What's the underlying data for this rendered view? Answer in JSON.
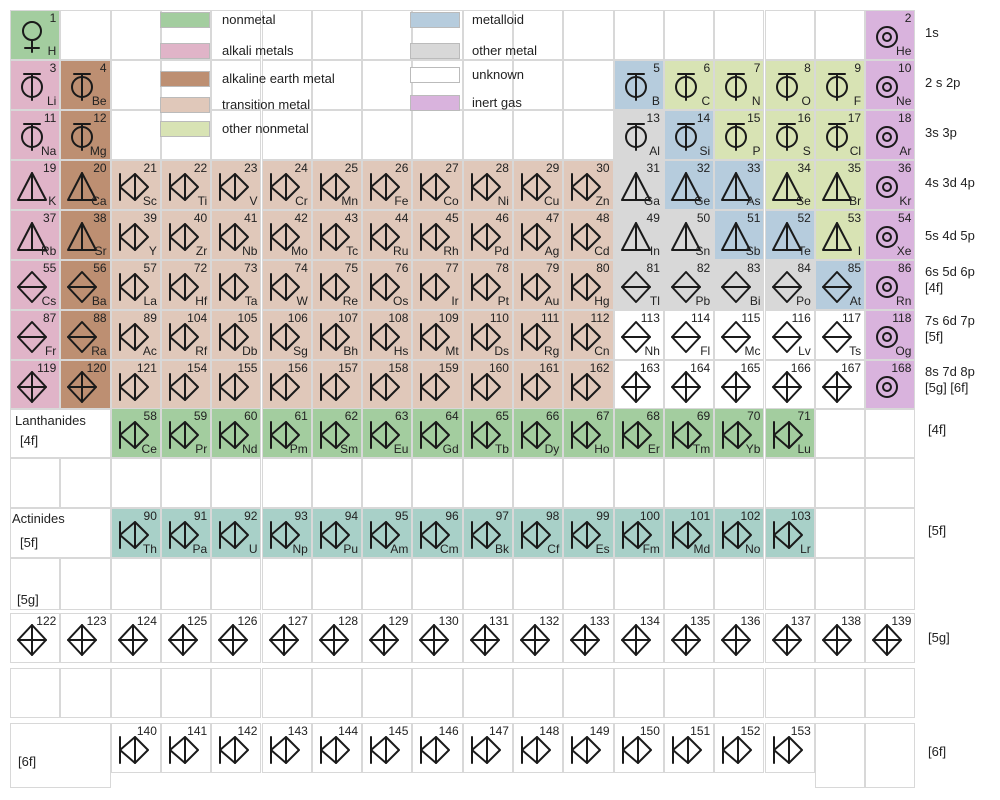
{
  "colors": {
    "nonmetal": "#a3cd9f",
    "alkali": "#e0b4c8",
    "alkaline": "#bd8f72",
    "transition": "#e0c8ba",
    "other_nonmetal": "#d8e3b4",
    "metalloid": "#b6ccdd",
    "other_metal": "#d8d8d8",
    "unknown": "#ffffff",
    "inert": "#d9b3dd",
    "lanthanide": "#a3cd9f",
    "actinide": "#a8d0c8"
  },
  "legend": [
    {
      "key": "nonmetal",
      "label": "nonmetal"
    },
    {
      "key": "alkali",
      "label": "alkali metals"
    },
    {
      "key": "alkaline",
      "label": "alkaline earth metal"
    },
    {
      "key": "transition",
      "label": "transition metal"
    },
    {
      "key": "other_nonmetal",
      "label": "other nonmetal"
    },
    {
      "key": "metalloid",
      "label": "metalloid"
    },
    {
      "key": "other_metal",
      "label": "other metal"
    },
    {
      "key": "unknown",
      "label": "unknown"
    },
    {
      "key": "inert",
      "label": "inert gas"
    }
  ],
  "shell_labels": [
    [
      "1s"
    ],
    [
      "2 s 2p"
    ],
    [
      "3s 3p"
    ],
    [
      "4s 3d 4p"
    ],
    [
      "5s 4d 5p"
    ],
    [
      "6s 5d 6p",
      "[4f]"
    ],
    [
      "7s 6d 7p",
      "[5f]"
    ],
    [
      "8s 7d 8p",
      "[5g] [6f]"
    ],
    [
      "[4f]"
    ],
    [
      "[5f]"
    ],
    [
      "[5g]"
    ],
    [
      "[6f]"
    ]
  ],
  "block_labels": {
    "lanthanides": [
      "Lanthanides",
      "[4f]"
    ],
    "actinides": [
      "Actinides",
      "[5f]"
    ],
    "g5": "[5g]",
    "f6": "[6f]"
  },
  "rows": [
    {
      "n": "1",
      "elements": [
        {
          "z": "1",
          "s": "H",
          "c": "nonmetal",
          "g": "circle-stem"
        },
        {
          "z": "2",
          "s": "He",
          "c": "inert",
          "g": "circle-target"
        }
      ]
    },
    {
      "n": "2",
      "elements": [
        {
          "z": "3",
          "s": "Li",
          "c": "alkali"
        },
        {
          "z": "4",
          "s": "Be",
          "c": "alkaline"
        },
        {
          "z": "5",
          "s": "B",
          "c": "metalloid"
        },
        {
          "z": "6",
          "s": "C",
          "c": "other_nonmetal"
        },
        {
          "z": "7",
          "s": "N",
          "c": "other_nonmetal"
        },
        {
          "z": "8",
          "s": "O",
          "c": "other_nonmetal"
        },
        {
          "z": "9",
          "s": "F",
          "c": "other_nonmetal"
        },
        {
          "z": "10",
          "s": "Ne",
          "c": "inert"
        }
      ]
    },
    {
      "n": "3",
      "elements": [
        {
          "z": "11",
          "s": "Na",
          "c": "alkali"
        },
        {
          "z": "12",
          "s": "Mg",
          "c": "alkaline"
        },
        {
          "z": "13",
          "s": "Al",
          "c": "other_metal"
        },
        {
          "z": "14",
          "s": "Si",
          "c": "metalloid"
        },
        {
          "z": "15",
          "s": "P",
          "c": "other_nonmetal"
        },
        {
          "z": "16",
          "s": "S",
          "c": "other_nonmetal"
        },
        {
          "z": "17",
          "s": "Cl",
          "c": "other_nonmetal"
        },
        {
          "z": "18",
          "s": "Ar",
          "c": "inert"
        }
      ]
    },
    {
      "n": "4",
      "elements": [
        {
          "z": "19",
          "s": "K",
          "c": "alkali"
        },
        {
          "z": "20",
          "s": "Ca",
          "c": "alkaline"
        },
        {
          "z": "21",
          "s": "Sc",
          "c": "transition"
        },
        {
          "z": "22",
          "s": "Ti",
          "c": "transition"
        },
        {
          "z": "23",
          "s": "V",
          "c": "transition"
        },
        {
          "z": "24",
          "s": "Cr",
          "c": "transition"
        },
        {
          "z": "25",
          "s": "Mn",
          "c": "transition"
        },
        {
          "z": "26",
          "s": "Fe",
          "c": "transition"
        },
        {
          "z": "27",
          "s": "Co",
          "c": "transition"
        },
        {
          "z": "28",
          "s": "Ni",
          "c": "transition"
        },
        {
          "z": "29",
          "s": "Cu",
          "c": "transition"
        },
        {
          "z": "30",
          "s": "Zn",
          "c": "transition"
        },
        {
          "z": "31",
          "s": "Ga",
          "c": "other_metal"
        },
        {
          "z": "32",
          "s": "Ge",
          "c": "metalloid"
        },
        {
          "z": "33",
          "s": "As",
          "c": "metalloid"
        },
        {
          "z": "34",
          "s": "Se",
          "c": "other_nonmetal"
        },
        {
          "z": "35",
          "s": "Br",
          "c": "other_nonmetal"
        },
        {
          "z": "36",
          "s": "Kr",
          "c": "inert"
        }
      ]
    },
    {
      "n": "5",
      "elements": [
        {
          "z": "37",
          "s": "Rb",
          "c": "alkali"
        },
        {
          "z": "38",
          "s": "Sr",
          "c": "alkaline"
        },
        {
          "z": "39",
          "s": "Y",
          "c": "transition"
        },
        {
          "z": "40",
          "s": "Zr",
          "c": "transition"
        },
        {
          "z": "41",
          "s": "Nb",
          "c": "transition"
        },
        {
          "z": "42",
          "s": "Mo",
          "c": "transition"
        },
        {
          "z": "43",
          "s": "Tc",
          "c": "transition"
        },
        {
          "z": "44",
          "s": "Ru",
          "c": "transition"
        },
        {
          "z": "45",
          "s": "Rh",
          "c": "transition"
        },
        {
          "z": "46",
          "s": "Pd",
          "c": "transition"
        },
        {
          "z": "47",
          "s": "Ag",
          "c": "transition"
        },
        {
          "z": "48",
          "s": "Cd",
          "c": "transition"
        },
        {
          "z": "49",
          "s": "In",
          "c": "other_metal"
        },
        {
          "z": "50",
          "s": "Sn",
          "c": "other_metal"
        },
        {
          "z": "51",
          "s": "Sb",
          "c": "metalloid"
        },
        {
          "z": "52",
          "s": "Te",
          "c": "metalloid"
        },
        {
          "z": "53",
          "s": "I",
          "c": "other_nonmetal"
        },
        {
          "z": "54",
          "s": "Xe",
          "c": "inert"
        }
      ]
    },
    {
      "n": "6",
      "elements": [
        {
          "z": "55",
          "s": "Cs",
          "c": "alkali"
        },
        {
          "z": "56",
          "s": "Ba",
          "c": "alkaline"
        },
        {
          "z": "57",
          "s": "La",
          "c": "transition"
        },
        {
          "z": "72",
          "s": "Hf",
          "c": "transition"
        },
        {
          "z": "73",
          "s": "Ta",
          "c": "transition"
        },
        {
          "z": "74",
          "s": "W",
          "c": "transition"
        },
        {
          "z": "75",
          "s": "Re",
          "c": "transition"
        },
        {
          "z": "76",
          "s": "Os",
          "c": "transition"
        },
        {
          "z": "77",
          "s": "Ir",
          "c": "transition"
        },
        {
          "z": "78",
          "s": "Pt",
          "c": "transition"
        },
        {
          "z": "79",
          "s": "Au",
          "c": "transition"
        },
        {
          "z": "80",
          "s": "Hg",
          "c": "transition"
        },
        {
          "z": "81",
          "s": "Tl",
          "c": "other_metal"
        },
        {
          "z": "82",
          "s": "Pb",
          "c": "other_metal"
        },
        {
          "z": "83",
          "s": "Bi",
          "c": "other_metal"
        },
        {
          "z": "84",
          "s": "Po",
          "c": "other_metal"
        },
        {
          "z": "85",
          "s": "At",
          "c": "metalloid"
        },
        {
          "z": "86",
          "s": "Rn",
          "c": "inert"
        }
      ]
    },
    {
      "n": "7",
      "elements": [
        {
          "z": "87",
          "s": "Fr",
          "c": "alkali"
        },
        {
          "z": "88",
          "s": "Ra",
          "c": "alkaline"
        },
        {
          "z": "89",
          "s": "Ac",
          "c": "transition"
        },
        {
          "z": "104",
          "s": "Rf",
          "c": "transition"
        },
        {
          "z": "105",
          "s": "Db",
          "c": "transition"
        },
        {
          "z": "106",
          "s": "Sg",
          "c": "transition"
        },
        {
          "z": "107",
          "s": "Bh",
          "c": "transition"
        },
        {
          "z": "108",
          "s": "Hs",
          "c": "transition"
        },
        {
          "z": "109",
          "s": "Mt",
          "c": "transition"
        },
        {
          "z": "110",
          "s": "Ds",
          "c": "transition"
        },
        {
          "z": "111",
          "s": "Rg",
          "c": "transition"
        },
        {
          "z": "112",
          "s": "Cn",
          "c": "transition"
        },
        {
          "z": "113",
          "s": "Nh",
          "c": "unknown"
        },
        {
          "z": "114",
          "s": "Fl",
          "c": "unknown"
        },
        {
          "z": "115",
          "s": "Mc",
          "c": "unknown"
        },
        {
          "z": "116",
          "s": "Lv",
          "c": "unknown"
        },
        {
          "z": "117",
          "s": "Ts",
          "c": "unknown"
        },
        {
          "z": "118",
          "s": "Og",
          "c": "inert"
        }
      ]
    },
    {
      "n": "8",
      "elements": [
        {
          "z": "119",
          "s": "",
          "c": "alkali"
        },
        {
          "z": "120",
          "s": "",
          "c": "alkaline"
        },
        {
          "z": "121",
          "s": "",
          "c": "transition"
        },
        {
          "z": "154",
          "s": "",
          "c": "transition"
        },
        {
          "z": "155",
          "s": "",
          "c": "transition"
        },
        {
          "z": "156",
          "s": "",
          "c": "transition"
        },
        {
          "z": "157",
          "s": "",
          "c": "transition"
        },
        {
          "z": "158",
          "s": "",
          "c": "transition"
        },
        {
          "z": "159",
          "s": "",
          "c": "transition"
        },
        {
          "z": "160",
          "s": "",
          "c": "transition"
        },
        {
          "z": "161",
          "s": "",
          "c": "transition"
        },
        {
          "z": "162",
          "s": "",
          "c": "transition"
        },
        {
          "z": "163",
          "s": "",
          "c": "unknown"
        },
        {
          "z": "164",
          "s": "",
          "c": "unknown"
        },
        {
          "z": "165",
          "s": "",
          "c": "unknown"
        },
        {
          "z": "166",
          "s": "",
          "c": "unknown"
        },
        {
          "z": "167",
          "s": "",
          "c": "unknown"
        },
        {
          "z": "168",
          "s": "",
          "c": "inert"
        }
      ]
    }
  ],
  "lanthanides": [
    {
      "z": "58",
      "s": "Ce"
    },
    {
      "z": "59",
      "s": "Pr"
    },
    {
      "z": "60",
      "s": "Nd"
    },
    {
      "z": "61",
      "s": "Pm"
    },
    {
      "z": "62",
      "s": "Sm"
    },
    {
      "z": "63",
      "s": "Eu"
    },
    {
      "z": "64",
      "s": "Gd"
    },
    {
      "z": "65",
      "s": "Tb"
    },
    {
      "z": "66",
      "s": "Dy"
    },
    {
      "z": "67",
      "s": "Ho"
    },
    {
      "z": "68",
      "s": "Er"
    },
    {
      "z": "69",
      "s": "Tm"
    },
    {
      "z": "70",
      "s": "Yb"
    },
    {
      "z": "71",
      "s": "Lu"
    }
  ],
  "actinides": [
    {
      "z": "90",
      "s": "Th"
    },
    {
      "z": "91",
      "s": "Pa"
    },
    {
      "z": "92",
      "s": "U"
    },
    {
      "z": "93",
      "s": "Np"
    },
    {
      "z": "94",
      "s": "Pu"
    },
    {
      "z": "95",
      "s": "Am"
    },
    {
      "z": "96",
      "s": "Cm"
    },
    {
      "z": "97",
      "s": "Bk"
    },
    {
      "z": "98",
      "s": "Cf"
    },
    {
      "z": "99",
      "s": "Es"
    },
    {
      "z": "100",
      "s": "Fm"
    },
    {
      "z": "101",
      "s": "Md"
    },
    {
      "z": "102",
      "s": "No"
    },
    {
      "z": "103",
      "s": "Lr"
    }
  ],
  "g_block": [
    "122",
    "123",
    "124",
    "125",
    "126",
    "127",
    "128",
    "129",
    "130",
    "131",
    "132",
    "133",
    "134",
    "135",
    "136",
    "137",
    "138",
    "139"
  ],
  "f6_block": [
    "140",
    "141",
    "142",
    "143",
    "144",
    "145",
    "146",
    "147",
    "148",
    "149",
    "150",
    "151",
    "152",
    "153"
  ]
}
